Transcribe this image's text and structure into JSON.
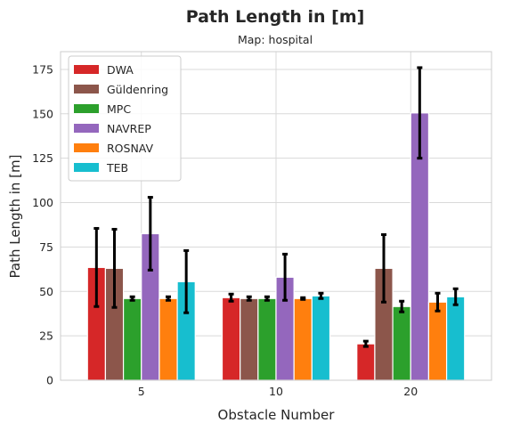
{
  "chart_data": {
    "type": "bar",
    "title": "Path Length in [m]",
    "subtitle": "Map: hospital",
    "xlabel": "Obstacle Number",
    "ylabel": "Path Length in [m]",
    "categories": [
      "5",
      "10",
      "20"
    ],
    "ylim": [
      0,
      185
    ],
    "yticks": [
      0,
      25,
      50,
      75,
      100,
      125,
      150,
      175
    ],
    "grid": true,
    "legend_position": "top-left",
    "series": [
      {
        "name": "DWA",
        "color": "#d62728",
        "values": [
          63.5,
          46.5,
          20.5
        ],
        "err": [
          22,
          2,
          1.5
        ]
      },
      {
        "name": "Güldenring",
        "color": "#8c564b",
        "values": [
          63,
          46,
          63
        ],
        "err": [
          22,
          1,
          19
        ]
      },
      {
        "name": "MPC",
        "color": "#2ca02c",
        "values": [
          46,
          46,
          41.5
        ],
        "err": [
          1,
          1,
          3
        ]
      },
      {
        "name": "NAVREP",
        "color": "#9467bd",
        "values": [
          82.5,
          58,
          150.5
        ],
        "err": [
          20.5,
          13,
          25.5
        ]
      },
      {
        "name": "ROSNAV",
        "color": "#ff7f0e",
        "values": [
          46,
          46,
          44
        ],
        "err": [
          1,
          0.5,
          5
        ]
      },
      {
        "name": "TEB",
        "color": "#17becf",
        "values": [
          55.5,
          47.5,
          47
        ],
        "err": [
          17.5,
          1.5,
          4.5
        ]
      }
    ]
  }
}
